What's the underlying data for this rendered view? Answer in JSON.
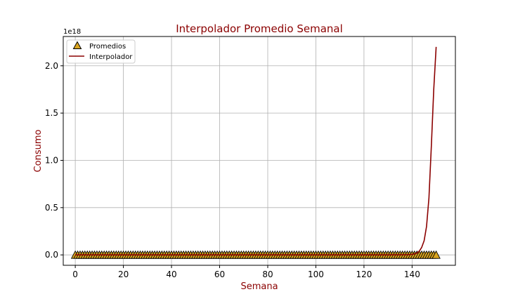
{
  "chart_data": {
    "type": "line",
    "title": "Interpolador Promedio Semanal",
    "xlabel": "Semana",
    "ylabel": "Consumo",
    "y_offset_text": "1e18",
    "xlim": [
      -5,
      158
    ],
    "ylim": [
      -0.11,
      2.31
    ],
    "x_ticks": [
      0,
      20,
      40,
      60,
      80,
      100,
      120,
      140
    ],
    "x_tick_labels": [
      "0",
      "20",
      "40",
      "60",
      "80",
      "100",
      "120",
      "140"
    ],
    "y_ticks": [
      0.0,
      0.5,
      1.0,
      1.5,
      2.0
    ],
    "y_tick_labels": [
      "0.0",
      "0.5",
      "1.0",
      "1.5",
      "2.0"
    ],
    "grid": true,
    "legend_position": "top-left",
    "colors": {
      "title": "#8b0000",
      "labels": "#8b0000",
      "line": "#8b0000",
      "marker_fill": "#daa520",
      "marker_edge": "#000000",
      "grid": "#b0b0b0"
    },
    "series": [
      {
        "name": "Promedios",
        "kind": "scatter",
        "marker": "triangle",
        "x_start": 0,
        "x_end": 150,
        "x_step": 1,
        "y_value": 0.0
      },
      {
        "name": "Interpolador",
        "kind": "line",
        "x": [
          0,
          100,
          130,
          138,
          140,
          141,
          142,
          143,
          144,
          145,
          146,
          147,
          148,
          149,
          150
        ],
        "y": [
          0.0,
          0.0,
          0.0,
          0.002,
          0.005,
          0.01,
          0.02,
          0.04,
          0.08,
          0.15,
          0.3,
          0.6,
          1.15,
          1.75,
          2.2
        ]
      }
    ]
  }
}
